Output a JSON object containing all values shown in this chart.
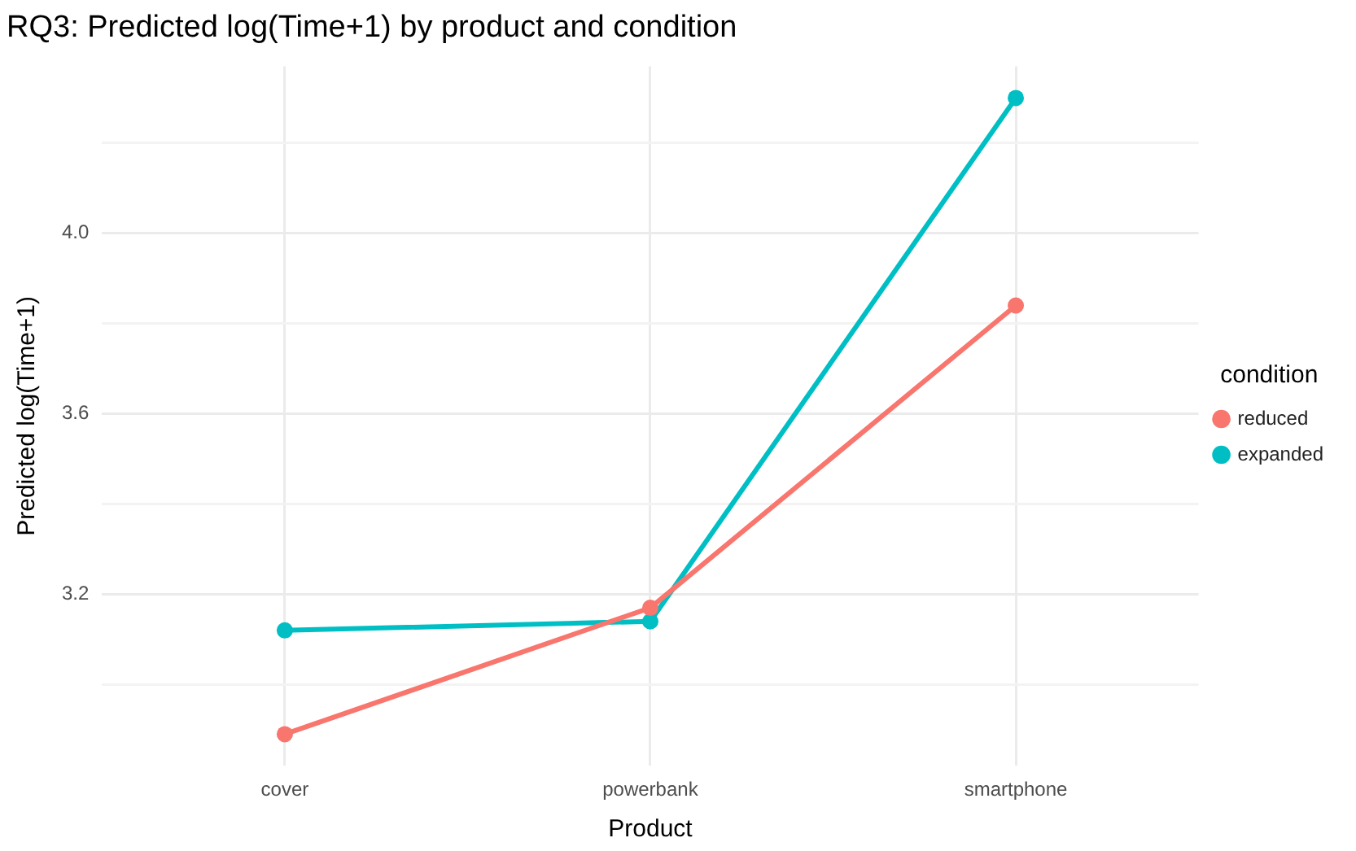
{
  "chart_data": {
    "type": "line",
    "title": "RQ3: Predicted log(Time+1) by product and condition",
    "xlabel": "Product",
    "ylabel": "Predicted log(Time+1)",
    "legend_title": "condition",
    "categories": [
      "cover",
      "powerbank",
      "smartphone"
    ],
    "series": [
      {
        "name": "reduced",
        "color": "#f8766d",
        "values": [
          2.89,
          3.17,
          3.84
        ]
      },
      {
        "name": "expanded",
        "color": "#00bfc4",
        "values": [
          3.12,
          3.14,
          4.3
        ]
      }
    ],
    "ylim": [
      2.82,
      4.37
    ],
    "yticks": [
      {
        "value": 3.0,
        "label": null
      },
      3.2,
      {
        "value": 3.4,
        "label": null
      },
      3.6,
      {
        "value": 3.8,
        "label": null
      },
      {
        "value": 4,
        "label": "4.0"
      },
      {
        "value": 4.2,
        "label": null
      }
    ],
    "grid": true,
    "legend": "right",
    "marker": "circle",
    "line_style": "solid"
  }
}
